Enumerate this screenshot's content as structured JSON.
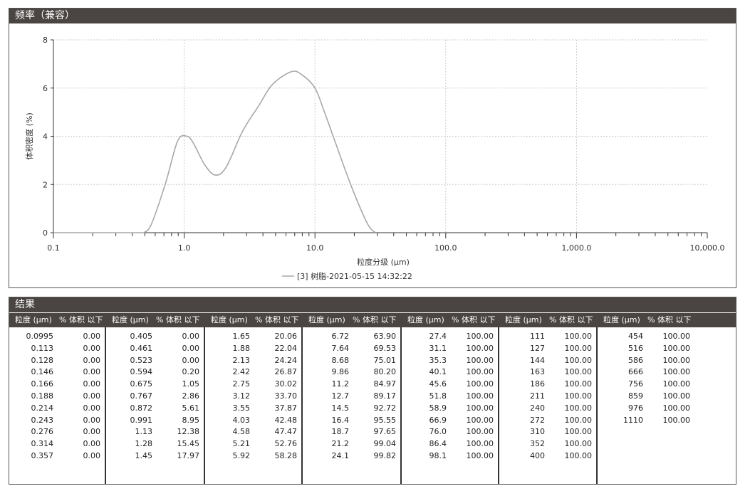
{
  "chart_panel": {
    "title": "频率（兼容）"
  },
  "chart_data": {
    "type": "line",
    "ylabel": "体积密度 (%)",
    "xlabel": "粒度分级 (μm)",
    "x_scale": "log",
    "xlim": [
      0.1,
      10000
    ],
    "ylim": [
      0,
      8
    ],
    "x_tick_labels": [
      "0.1",
      "1.0",
      "10.0",
      "100.0",
      "1,000.0",
      "10,000.0"
    ],
    "y_tick_labels": [
      "0",
      "2",
      "4",
      "6",
      "8"
    ],
    "grid": true,
    "legend": "bottom-center",
    "series": [
      {
        "name": "[3] 树脂-2021-05-15 14:32:22",
        "color": "#a8a8a8",
        "x": [
          0.49,
          0.56,
          0.72,
          0.89,
          1.05,
          1.18,
          1.43,
          1.73,
          2.1,
          2.79,
          3.72,
          4.73,
          6.6,
          8.0,
          10,
          11.7,
          14.2,
          18.9,
          25.1,
          29
        ],
        "y": [
          0,
          0.34,
          2.05,
          3.8,
          4.0,
          3.7,
          2.83,
          2.39,
          2.73,
          4.2,
          5.27,
          6.15,
          6.68,
          6.54,
          6.0,
          5.07,
          3.8,
          1.95,
          0.39,
          0
        ]
      }
    ]
  },
  "table_panel": {
    "title": "结果",
    "col_size": "粒度 (μm)",
    "col_pct": "% 体积 以下",
    "groups": [
      [
        [
          "0.0995",
          "0.00"
        ],
        [
          "0.113",
          "0.00"
        ],
        [
          "0.128",
          "0.00"
        ],
        [
          "0.146",
          "0.00"
        ],
        [
          "0.166",
          "0.00"
        ],
        [
          "0.188",
          "0.00"
        ],
        [
          "0.214",
          "0.00"
        ],
        [
          "0.243",
          "0.00"
        ],
        [
          "0.276",
          "0.00"
        ],
        [
          "0.314",
          "0.00"
        ],
        [
          "0.357",
          "0.00"
        ]
      ],
      [
        [
          "0.405",
          "0.00"
        ],
        [
          "0.461",
          "0.00"
        ],
        [
          "0.523",
          "0.00"
        ],
        [
          "0.594",
          "0.20"
        ],
        [
          "0.675",
          "1.05"
        ],
        [
          "0.767",
          "2.86"
        ],
        [
          "0.872",
          "5.61"
        ],
        [
          "0.991",
          "8.95"
        ],
        [
          "1.13",
          "12.38"
        ],
        [
          "1.28",
          "15.45"
        ],
        [
          "1.45",
          "17.97"
        ]
      ],
      [
        [
          "1.65",
          "20.06"
        ],
        [
          "1.88",
          "22.04"
        ],
        [
          "2.13",
          "24.24"
        ],
        [
          "2.42",
          "26.87"
        ],
        [
          "2.75",
          "30.02"
        ],
        [
          "3.12",
          "33.70"
        ],
        [
          "3.55",
          "37.87"
        ],
        [
          "4.03",
          "42.48"
        ],
        [
          "4.58",
          "47.47"
        ],
        [
          "5.21",
          "52.76"
        ],
        [
          "5.92",
          "58.28"
        ]
      ],
      [
        [
          "6.72",
          "63.90"
        ],
        [
          "7.64",
          "69.53"
        ],
        [
          "8.68",
          "75.01"
        ],
        [
          "9.86",
          "80.20"
        ],
        [
          "11.2",
          "84.97"
        ],
        [
          "12.7",
          "89.17"
        ],
        [
          "14.5",
          "92.72"
        ],
        [
          "16.4",
          "95.55"
        ],
        [
          "18.7",
          "97.65"
        ],
        [
          "21.2",
          "99.04"
        ],
        [
          "24.1",
          "99.82"
        ]
      ],
      [
        [
          "27.4",
          "100.00"
        ],
        [
          "31.1",
          "100.00"
        ],
        [
          "35.3",
          "100.00"
        ],
        [
          "40.1",
          "100.00"
        ],
        [
          "45.6",
          "100.00"
        ],
        [
          "51.8",
          "100.00"
        ],
        [
          "58.9",
          "100.00"
        ],
        [
          "66.9",
          "100.00"
        ],
        [
          "76.0",
          "100.00"
        ],
        [
          "86.4",
          "100.00"
        ],
        [
          "98.1",
          "100.00"
        ]
      ],
      [
        [
          "111",
          "100.00"
        ],
        [
          "127",
          "100.00"
        ],
        [
          "144",
          "100.00"
        ],
        [
          "163",
          "100.00"
        ],
        [
          "186",
          "100.00"
        ],
        [
          "211",
          "100.00"
        ],
        [
          "240",
          "100.00"
        ],
        [
          "272",
          "100.00"
        ],
        [
          "310",
          "100.00"
        ],
        [
          "352",
          "100.00"
        ],
        [
          "400",
          "100.00"
        ]
      ],
      [
        [
          "454",
          "100.00"
        ],
        [
          "516",
          "100.00"
        ],
        [
          "586",
          "100.00"
        ],
        [
          "666",
          "100.00"
        ],
        [
          "756",
          "100.00"
        ],
        [
          "859",
          "100.00"
        ],
        [
          "976",
          "100.00"
        ],
        [
          "1110",
          "100.00"
        ]
      ]
    ]
  }
}
